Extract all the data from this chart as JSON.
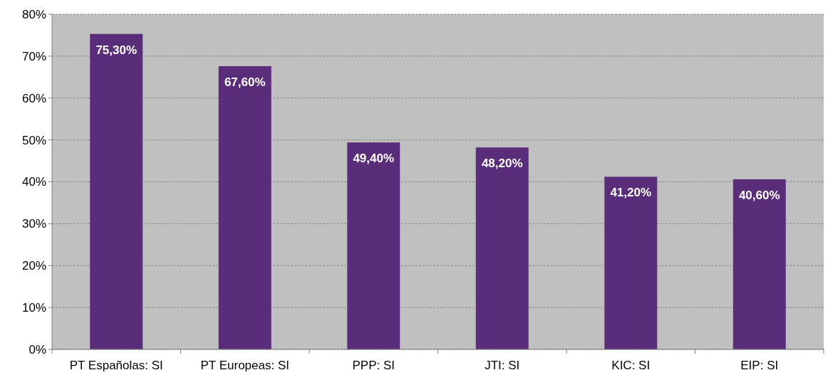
{
  "chart_data": {
    "type": "bar",
    "categories": [
      "PT Españolas: SI",
      "PT Europeas: SI",
      "PPP: SI",
      "JTI: SI",
      "KIC: SI",
      "EIP: SI"
    ],
    "values": [
      75.3,
      67.6,
      49.4,
      48.2,
      41.2,
      40.6
    ],
    "color": "#5a2d7b",
    "value_labels": [
      "75,30%",
      "67,60%",
      "49,40%",
      "48,20%",
      "41,20%",
      "40,60%"
    ],
    "ylim": [
      0,
      80
    ],
    "yticks": [
      {
        "value": 0,
        "label": "0%"
      },
      {
        "value": 10,
        "label": "10%"
      },
      {
        "value": 20,
        "label": "20%"
      },
      {
        "value": 30,
        "label": "30%"
      },
      {
        "value": 40,
        "label": "40%"
      },
      {
        "value": 50,
        "label": "50%"
      },
      {
        "value": 60,
        "label": "60%"
      },
      {
        "value": 70,
        "label": "70%"
      },
      {
        "value": 80,
        "label": "80%"
      }
    ],
    "grid": "y"
  }
}
